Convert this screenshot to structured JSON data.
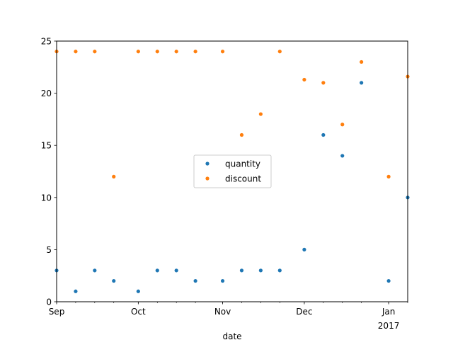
{
  "chart_data": {
    "type": "scatter",
    "title": "",
    "xlabel": "date",
    "ylabel": "",
    "ylim": [
      0,
      25
    ],
    "xlim": [
      "2016-09-01",
      "2017-01-08"
    ],
    "grid": false,
    "legend": {
      "placement": "center"
    },
    "x_ticks": [
      {
        "date": "2016-09-01",
        "label": "Sep",
        "sublabel": ""
      },
      {
        "date": "2016-10-01",
        "label": "Oct",
        "sublabel": ""
      },
      {
        "date": "2016-11-01",
        "label": "Nov",
        "sublabel": ""
      },
      {
        "date": "2016-12-01",
        "label": "Dec",
        "sublabel": ""
      },
      {
        "date": "2017-01-01",
        "label": "Jan",
        "sublabel": "2017"
      }
    ],
    "y_ticks": [
      0,
      5,
      10,
      15,
      20,
      25
    ],
    "x": [
      "2016-09-01",
      "2016-09-08",
      "2016-09-15",
      "2016-09-22",
      "2016-10-01",
      "2016-10-08",
      "2016-10-15",
      "2016-10-22",
      "2016-11-01",
      "2016-11-08",
      "2016-11-15",
      "2016-11-22",
      "2016-12-01",
      "2016-12-08",
      "2016-12-15",
      "2016-12-22",
      "2017-01-01",
      "2017-01-08"
    ],
    "series": [
      {
        "name": "quantity",
        "color": "#1f77b4",
        "values": [
          3,
          1,
          3,
          2,
          1,
          3,
          3,
          2,
          2,
          3,
          3,
          3,
          5,
          16,
          14,
          21,
          2,
          10
        ]
      },
      {
        "name": "discount",
        "color": "#ff7f0e",
        "values": [
          24,
          24,
          24,
          12,
          24,
          24,
          24,
          24,
          24,
          16,
          18,
          24,
          21.3,
          21,
          17,
          23,
          12,
          21.6
        ]
      }
    ]
  }
}
